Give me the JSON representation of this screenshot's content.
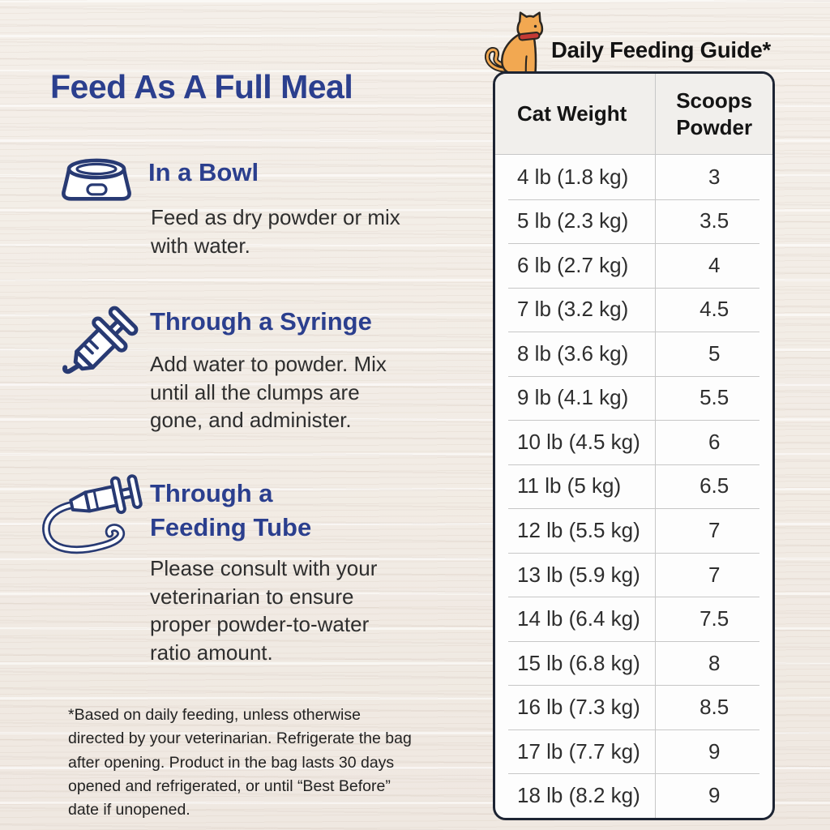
{
  "colors": {
    "heading_blue": "#2b3f8e",
    "icon_navy": "#283a73",
    "body_text": "#2e2e2e",
    "table_border": "#1d2433",
    "header_bg": "#f1efec",
    "row_bg": "#fdfdfd",
    "divider": "#c7c7c7",
    "cat_orange": "#f2a851",
    "collar_red": "#c43a35",
    "background": "#f2ece5"
  },
  "left_panel": {
    "title": "Feed As A Full Meal",
    "sections": [
      {
        "icon": "bowl-icon",
        "heading": "In a Bowl",
        "body": "Feed as dry powder or mix\nwith water."
      },
      {
        "icon": "syringe-icon",
        "heading": "Through a Syringe",
        "body": "Add water to powder. Mix\nuntil all the clumps are\ngone, and administer."
      },
      {
        "icon": "feeding-tube-icon",
        "heading": "Through a\nFeeding Tube",
        "body": "Please consult with your\nveterinarian to ensure\nproper powder-to-water\nratio amount."
      }
    ],
    "footnote": "*Based on daily feeding, unless otherwise\ndirected by your veterinarian. Refrigerate the bag\nafter opening. Product in the bag lasts 30 days\nopened and refrigerated, or until “Best Before”\ndate if unopened."
  },
  "feeding_guide": {
    "title": "Daily Feeding Guide*",
    "columns": {
      "weight": "Cat Weight",
      "scoops": "Scoops\nPowder"
    },
    "rows": [
      {
        "weight": "4 lb (1.8 kg)",
        "scoops": "3"
      },
      {
        "weight": "5 lb (2.3 kg)",
        "scoops": "3.5"
      },
      {
        "weight": "6 lb (2.7 kg)",
        "scoops": "4"
      },
      {
        "weight": "7 lb (3.2 kg)",
        "scoops": "4.5"
      },
      {
        "weight": "8 lb (3.6 kg)",
        "scoops": "5"
      },
      {
        "weight": "9 lb (4.1 kg)",
        "scoops": "5.5"
      },
      {
        "weight": "10 lb (4.5 kg)",
        "scoops": "6"
      },
      {
        "weight": "11 lb (5 kg)",
        "scoops": "6.5"
      },
      {
        "weight": "12 lb (5.5 kg)",
        "scoops": "7"
      },
      {
        "weight": "13 lb (5.9 kg)",
        "scoops": "7"
      },
      {
        "weight": "14 lb (6.4 kg)",
        "scoops": "7.5"
      },
      {
        "weight": "15 lb (6.8 kg)",
        "scoops": "8"
      },
      {
        "weight": "16 lb (7.3 kg)",
        "scoops": "8.5"
      },
      {
        "weight": "17 lb (7.7 kg)",
        "scoops": "9"
      },
      {
        "weight": "18 lb (8.2 kg)",
        "scoops": "9"
      }
    ]
  }
}
